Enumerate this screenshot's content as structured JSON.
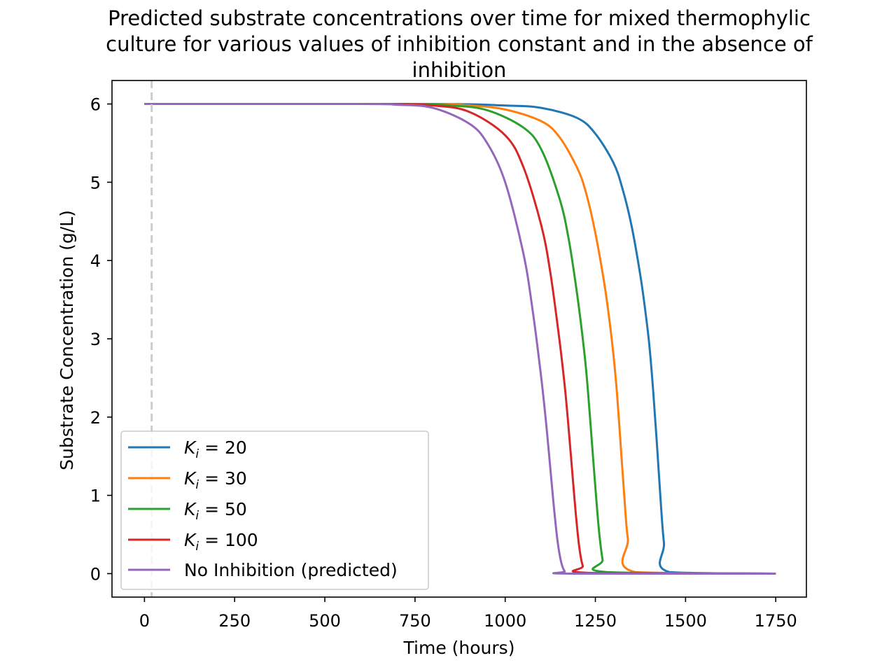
{
  "chart_data": {
    "type": "line",
    "title_lines": [
      "Predicted substrate concentrations over time for mixed thermophylic",
      "culture for various values of inhibition constant and in the absence of",
      "inhibition"
    ],
    "xlabel": "Time (hours)",
    "ylabel": "Substrate Concentration (g/L)",
    "xlim": [
      -90,
      1835
    ],
    "ylim": [
      -0.3,
      6.3
    ],
    "xticks": [
      0,
      250,
      500,
      750,
      1000,
      1250,
      1500,
      1750
    ],
    "yticks": [
      0,
      1,
      2,
      3,
      4,
      5,
      6
    ],
    "grid": false,
    "legend_position": "lower left",
    "reference_line": {
      "x": 20,
      "style": "dashed",
      "color": "#cccccc"
    },
    "series": [
      {
        "name": "K_i = 20",
        "legend_symbol": "K",
        "legend_subscript": "i",
        "legend_value": " = 20",
        "color": "#1f77b4",
        "x": [
          0,
          800,
          1000,
          1100,
          1200,
          1250,
          1300,
          1325,
          1350,
          1375,
          1390,
          1400,
          1410,
          1420,
          1430,
          1440,
          1455,
          1750
        ],
        "y": [
          6.0,
          6.0,
          5.98,
          5.95,
          5.82,
          5.62,
          5.25,
          4.92,
          4.45,
          3.8,
          3.3,
          2.9,
          2.35,
          1.7,
          1.0,
          0.4,
          0.02,
          0.0
        ]
      },
      {
        "name": "K_i = 30",
        "legend_symbol": "K",
        "legend_subscript": "i",
        "legend_value": " = 30",
        "color": "#ff7f0e",
        "x": [
          0,
          750,
          900,
          1000,
          1100,
          1150,
          1200,
          1225,
          1250,
          1275,
          1290,
          1300,
          1310,
          1320,
          1330,
          1340,
          1360,
          1750
        ],
        "y": [
          6.0,
          6.0,
          5.98,
          5.93,
          5.78,
          5.58,
          5.18,
          4.85,
          4.35,
          3.7,
          3.2,
          2.8,
          2.3,
          1.65,
          1.0,
          0.45,
          0.02,
          0.0
        ]
      },
      {
        "name": "K_i = 50",
        "legend_symbol": "K",
        "legend_subscript": "i",
        "legend_value": " = 50",
        "color": "#2ca02c",
        "x": [
          0,
          700,
          850,
          950,
          1050,
          1100,
          1150,
          1175,
          1200,
          1220,
          1230,
          1240,
          1250,
          1260,
          1270,
          1280,
          1750
        ],
        "y": [
          6.0,
          6.0,
          5.98,
          5.92,
          5.7,
          5.42,
          4.8,
          4.3,
          3.55,
          2.8,
          2.3,
          1.7,
          1.1,
          0.55,
          0.18,
          0.02,
          0.0
        ]
      },
      {
        "name": "K_i = 100",
        "legend_symbol": "K",
        "legend_subscript": "i",
        "legend_value": " = 100",
        "color": "#d62728",
        "x": [
          0,
          650,
          800,
          900,
          1000,
          1050,
          1100,
          1125,
          1150,
          1165,
          1175,
          1185,
          1195,
          1205,
          1215,
          1230,
          1750
        ],
        "y": [
          6.0,
          6.0,
          5.98,
          5.9,
          5.6,
          5.2,
          4.45,
          3.85,
          3.0,
          2.4,
          1.9,
          1.35,
          0.8,
          0.35,
          0.1,
          0.01,
          0.0
        ]
      },
      {
        "name": "No Inhibition (predicted)",
        "legend_symbol": "",
        "legend_subscript": "",
        "legend_value": "No Inhibition (predicted)",
        "color": "#9467bd",
        "x": [
          0,
          600,
          700,
          800,
          900,
          950,
          1000,
          1050,
          1075,
          1100,
          1115,
          1125,
          1135,
          1145,
          1155,
          1165,
          1180,
          1750
        ],
        "y": [
          6.0,
          6.0,
          5.99,
          5.95,
          5.75,
          5.5,
          5.0,
          4.1,
          3.4,
          2.5,
          1.85,
          1.35,
          0.85,
          0.42,
          0.15,
          0.03,
          0.0,
          0.0
        ]
      }
    ]
  }
}
